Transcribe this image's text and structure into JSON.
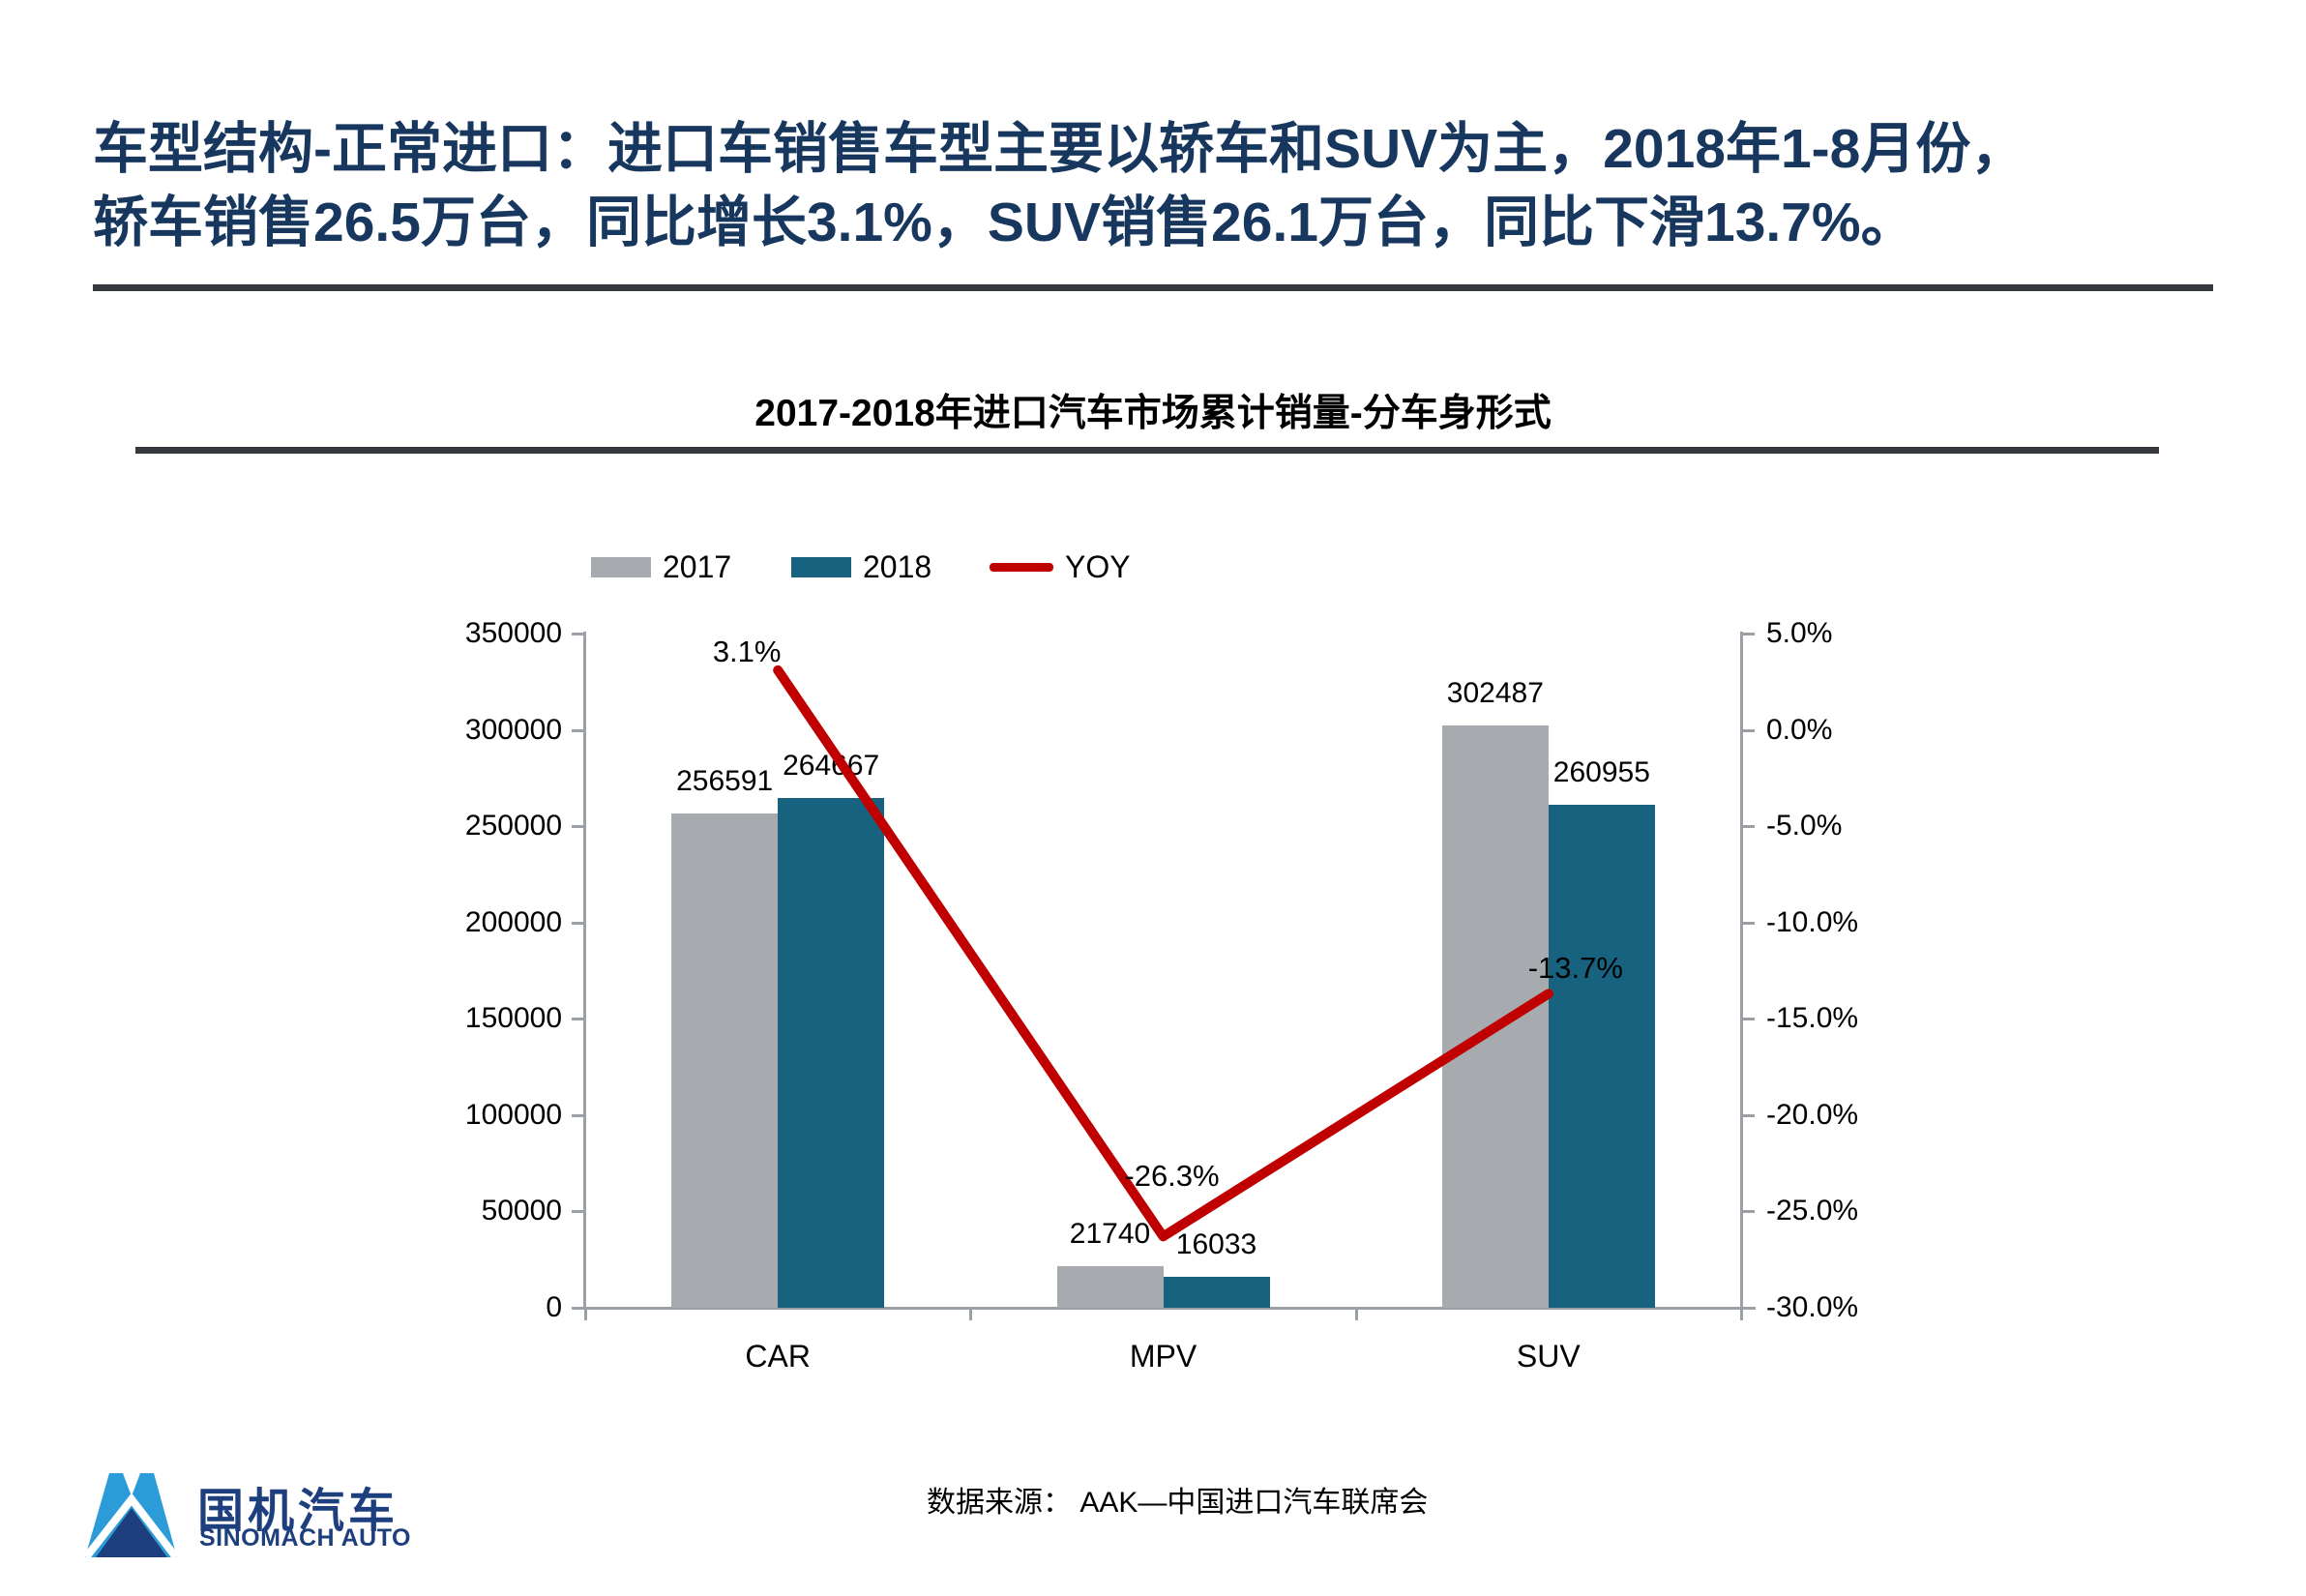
{
  "title": {
    "line1": "车型结构-正常进口：进口车销售车型主要以轿车和SUV为主，2018年1-8月份，",
    "line2": "轿车销售26.5万台，同比增长3.1%，SUV销售26.1万台，同比下滑13.7%。"
  },
  "chart": {
    "title": "2017-2018年进口汽车市场累计销量-分车身形式"
  },
  "chart_data": {
    "type": "bar+line",
    "title": "2017-2018年进口汽车市场累计销量-分车身形式",
    "categories": [
      "CAR",
      "MPV",
      "SUV"
    ],
    "series": [
      {
        "name": "2017",
        "type": "bar",
        "color": "#a7abaf",
        "axis": "left",
        "values": [
          256591,
          21740,
          302487
        ]
      },
      {
        "name": "2018",
        "type": "bar",
        "color": "#16627f",
        "axis": "left",
        "values": [
          264667,
          16033,
          260955
        ]
      },
      {
        "name": "YOY",
        "type": "line",
        "color": "#c00000",
        "axis": "right",
        "values": [
          3.1,
          -26.3,
          -13.7
        ],
        "labels": [
          "3.1%",
          "-26.3%",
          "-13.7%"
        ]
      }
    ],
    "left_axis": {
      "min": 0,
      "max": 350000,
      "tick_labels": [
        "350000",
        "300000",
        "250000",
        "200000",
        "150000",
        "100000",
        "50000",
        "0"
      ]
    },
    "right_axis": {
      "min": -30,
      "max": 5,
      "tick_labels": [
        "5.0%",
        "0.0%",
        "-5.0%",
        "-10.0%",
        "-15.0%",
        "-20.0%",
        "-25.0%",
        "-30.0%"
      ]
    },
    "legend": [
      "2017",
      "2018",
      "YOY"
    ],
    "legend_position": "top",
    "grid": false
  },
  "colors": {
    "title_navy": "#17375e",
    "divider": "#35393d",
    "bar_2017": "#a7abaf",
    "bar_2018": "#16627f",
    "yoy_line": "#c00000",
    "axis_gray": "#9aa0a6",
    "logo_light_blue": "#2b9cd8",
    "logo_navy": "#1d3f7e"
  },
  "source": {
    "text": "数据来源： AAK—中国进口汽车联席会"
  },
  "logo": {
    "cn": "国机汽车",
    "en": "SINOMACH AUTO"
  }
}
